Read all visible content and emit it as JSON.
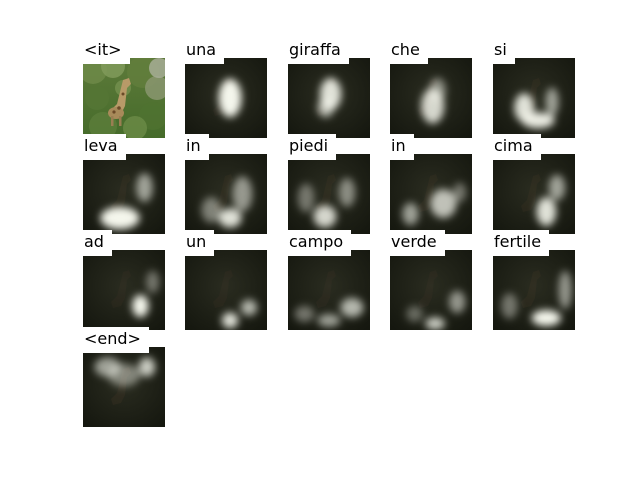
{
  "tiles": [
    {
      "word": "<it>",
      "kind": "photo"
    },
    {
      "word": "una",
      "spots": [
        [
          0.55,
          0.5,
          0.14,
          0.24,
          1.0
        ]
      ],
      "tone": 0.18
    },
    {
      "word": "giraffa",
      "spots": [
        [
          0.52,
          0.45,
          0.13,
          0.2,
          0.9
        ],
        [
          0.46,
          0.62,
          0.1,
          0.12,
          0.7
        ]
      ],
      "tone": 0.18
    },
    {
      "word": "che",
      "spots": [
        [
          0.52,
          0.6,
          0.14,
          0.22,
          0.85
        ],
        [
          0.58,
          0.4,
          0.1,
          0.15,
          0.5
        ]
      ],
      "tone": 0.18
    },
    {
      "word": "si",
      "spots": [
        [
          0.38,
          0.62,
          0.12,
          0.18,
          0.9
        ],
        [
          0.55,
          0.78,
          0.2,
          0.1,
          0.95
        ],
        [
          0.72,
          0.55,
          0.08,
          0.18,
          0.6
        ]
      ],
      "tone": 0.22
    },
    {
      "word": "leva",
      "spots": [
        [
          0.45,
          0.8,
          0.24,
          0.14,
          1.0
        ],
        [
          0.75,
          0.42,
          0.1,
          0.18,
          0.6
        ]
      ],
      "tone": 0.22
    },
    {
      "word": "in",
      "spots": [
        [
          0.55,
          0.8,
          0.14,
          0.12,
          0.9
        ],
        [
          0.7,
          0.5,
          0.12,
          0.22,
          0.55
        ],
        [
          0.32,
          0.7,
          0.12,
          0.16,
          0.45
        ]
      ],
      "tone": 0.2
    },
    {
      "word": "piedi",
      "spots": [
        [
          0.45,
          0.78,
          0.14,
          0.14,
          0.85
        ],
        [
          0.72,
          0.48,
          0.1,
          0.18,
          0.5
        ],
        [
          0.22,
          0.55,
          0.1,
          0.18,
          0.4
        ]
      ],
      "tone": 0.2
    },
    {
      "word": "in",
      "spots": [
        [
          0.25,
          0.75,
          0.1,
          0.14,
          0.6
        ],
        [
          0.65,
          0.62,
          0.16,
          0.18,
          0.75
        ],
        [
          0.85,
          0.48,
          0.08,
          0.12,
          0.4
        ]
      ],
      "tone": 0.2
    },
    {
      "word": "cima",
      "spots": [
        [
          0.65,
          0.72,
          0.12,
          0.18,
          0.9
        ],
        [
          0.78,
          0.42,
          0.1,
          0.16,
          0.6
        ]
      ],
      "tone": 0.2
    },
    {
      "word": "ad",
      "spots": [
        [
          0.7,
          0.7,
          0.1,
          0.14,
          1.0
        ],
        [
          0.85,
          0.4,
          0.08,
          0.14,
          0.4
        ]
      ],
      "tone": 0.16
    },
    {
      "word": "un",
      "spots": [
        [
          0.55,
          0.88,
          0.1,
          0.1,
          0.9
        ],
        [
          0.78,
          0.72,
          0.1,
          0.1,
          0.7
        ]
      ],
      "tone": 0.16
    },
    {
      "word": "campo",
      "spots": [
        [
          0.78,
          0.72,
          0.14,
          0.12,
          0.7
        ],
        [
          0.5,
          0.88,
          0.14,
          0.08,
          0.6
        ],
        [
          0.2,
          0.8,
          0.12,
          0.1,
          0.4
        ]
      ],
      "tone": 0.18
    },
    {
      "word": "verde",
      "spots": [
        [
          0.55,
          0.92,
          0.12,
          0.08,
          0.8
        ],
        [
          0.82,
          0.65,
          0.1,
          0.14,
          0.55
        ],
        [
          0.3,
          0.8,
          0.1,
          0.1,
          0.35
        ]
      ],
      "tone": 0.18
    },
    {
      "word": "fertile",
      "spots": [
        [
          0.65,
          0.85,
          0.18,
          0.1,
          1.0
        ],
        [
          0.88,
          0.5,
          0.08,
          0.24,
          0.55
        ],
        [
          0.2,
          0.7,
          0.1,
          0.16,
          0.4
        ]
      ],
      "tone": 0.22
    },
    {
      "word": "<end>",
      "spots": [
        [
          0.78,
          0.25,
          0.1,
          0.12,
          0.8
        ],
        [
          0.3,
          0.25,
          0.16,
          0.12,
          0.6
        ],
        [
          0.5,
          0.35,
          0.2,
          0.14,
          0.45
        ]
      ],
      "tone": 0.24
    }
  ]
}
